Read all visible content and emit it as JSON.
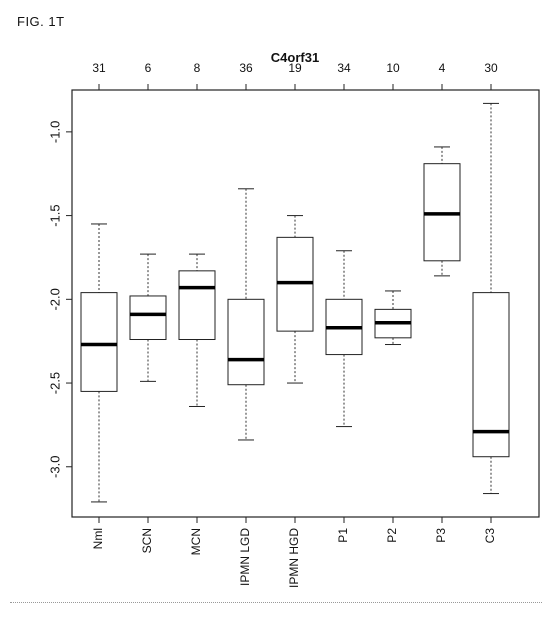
{
  "figure_label": "FIG. 1T",
  "chart_data": {
    "type": "boxplot",
    "title": "C4orf31",
    "xlabel": "",
    "ylabel": "",
    "ylim": [
      -3.3,
      -0.75
    ],
    "yticks": [
      -1.0,
      -1.5,
      -2.0,
      -2.5,
      -3.0
    ],
    "ytick_labels": [
      "-1.0",
      "-1.5",
      "-2.0",
      "-2.5",
      "-3.0"
    ],
    "grid": false,
    "categories": [
      "Nml",
      "SCN",
      "MCN",
      "IPMN LGD",
      "IPMN HGD",
      "P1",
      "P2",
      "P3",
      "C3"
    ],
    "counts": [
      "31",
      "6",
      "8",
      "36",
      "19",
      "34",
      "10",
      "4",
      "30"
    ],
    "boxes": [
      {
        "whisker_low": -3.21,
        "q1": -2.55,
        "median": -2.27,
        "q3": -1.96,
        "whisker_high": -1.55
      },
      {
        "whisker_low": -2.49,
        "q1": -2.24,
        "median": -2.09,
        "q3": -1.98,
        "whisker_high": -1.73
      },
      {
        "whisker_low": -2.64,
        "q1": -2.24,
        "median": -1.93,
        "q3": -1.83,
        "whisker_high": -1.73
      },
      {
        "whisker_low": -2.84,
        "q1": -2.51,
        "median": -2.36,
        "q3": -2.0,
        "whisker_high": -1.34
      },
      {
        "whisker_low": -2.5,
        "q1": -2.19,
        "median": -1.9,
        "q3": -1.63,
        "whisker_high": -1.5
      },
      {
        "whisker_low": -2.76,
        "q1": -2.33,
        "median": -2.17,
        "q3": -2.0,
        "whisker_high": -1.71
      },
      {
        "whisker_low": -2.27,
        "q1": -2.23,
        "median": -2.14,
        "q3": -2.06,
        "whisker_high": -1.95
      },
      {
        "whisker_low": -1.86,
        "q1": -1.77,
        "median": -1.49,
        "q3": -1.19,
        "whisker_high": -1.09
      },
      {
        "whisker_low": -3.16,
        "q1": -2.94,
        "median": -2.79,
        "q3": -1.96,
        "whisker_high": -0.83
      }
    ]
  }
}
